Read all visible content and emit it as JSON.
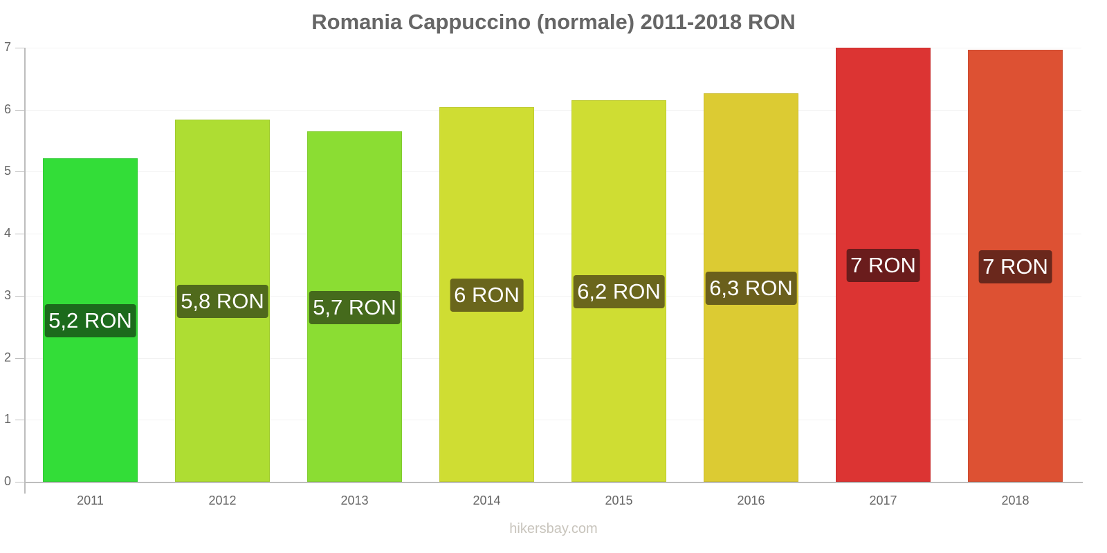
{
  "chart_data": {
    "type": "bar",
    "title": "Romania Cappuccino (normale) 2011-2018 RON",
    "xlabel": "",
    "ylabel": "",
    "ylim": [
      0,
      7
    ],
    "yticks": [
      "0",
      "1",
      "2",
      "3",
      "4",
      "5",
      "6",
      "7"
    ],
    "grid": true,
    "legend": null,
    "categories": [
      "2011",
      "2012",
      "2013",
      "2014",
      "2015",
      "2016",
      "2017",
      "2018"
    ],
    "values": [
      5.22,
      5.84,
      5.65,
      6.04,
      6.15,
      6.26,
      7.0,
      6.97
    ],
    "data_labels": [
      "5,2 RON",
      "5,8 RON",
      "5,7 RON",
      "6 RON",
      "6,2 RON",
      "6,3 RON",
      "7 RON",
      "7 RON"
    ],
    "bar_colors": [
      "#33dd38",
      "#aedd33",
      "#8bdd33",
      "#cfdd33",
      "#cfdd33",
      "#dccb33",
      "#dc3433",
      "#dd5133"
    ],
    "label_colors": [
      "#1c6a1c",
      "#506a1c",
      "#456a1c",
      "#6a661c",
      "#6a661c",
      "#6a5f1c",
      "#6a1c1c",
      "#6a281c"
    ]
  },
  "footer": {
    "watermark": "hikersbay.com"
  }
}
